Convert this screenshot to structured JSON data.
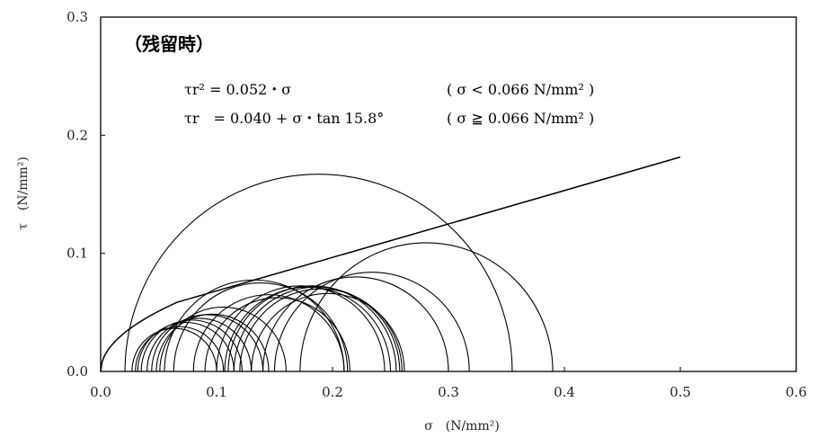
{
  "chart_data": {
    "type": "scatter",
    "title": "",
    "xlabel": "σ　(N/mm²)",
    "ylabel": "τ　(N/mm²)",
    "xlim": [
      0.0,
      0.6
    ],
    "ylim": [
      0.0,
      0.3
    ],
    "x_ticks": [
      "0.0",
      "0.1",
      "0.2",
      "0.3",
      "0.4",
      "0.5",
      "0.6"
    ],
    "y_ticks": [
      "0.0",
      "0.1",
      "0.2",
      "0.3"
    ],
    "grid": false,
    "legend": "none",
    "annotation": {
      "heading": "（残留時）",
      "eq1_left": "τr² = 0.052・σ",
      "eq1_right": "( σ < 0.066 N/mm² )",
      "eq2_left": "τr　= 0.040 + σ・tan 15.8°",
      "eq2_right": "( σ ≧ 0.066 N/mm² )"
    },
    "mohr_circles": [
      {
        "s3": 0.027,
        "s1": 0.1
      },
      {
        "s3": 0.03,
        "s1": 0.106
      },
      {
        "s3": 0.032,
        "s1": 0.115
      },
      {
        "s3": 0.035,
        "s1": 0.122
      },
      {
        "s3": 0.04,
        "s1": 0.13
      },
      {
        "s3": 0.044,
        "s1": 0.14
      },
      {
        "s3": 0.048,
        "s1": 0.145
      },
      {
        "s3": 0.051,
        "s1": 0.16
      },
      {
        "s3": 0.055,
        "s1": 0.21
      },
      {
        "s3": 0.063,
        "s1": 0.213
      },
      {
        "s3": 0.08,
        "s1": 0.21
      },
      {
        "s3": 0.09,
        "s1": 0.215
      },
      {
        "s3": 0.1,
        "s1": 0.245
      },
      {
        "s3": 0.107,
        "s1": 0.25
      },
      {
        "s3": 0.11,
        "s1": 0.255
      },
      {
        "s3": 0.115,
        "s1": 0.258
      },
      {
        "s3": 0.12,
        "s1": 0.26
      },
      {
        "s3": 0.13,
        "s1": 0.262
      },
      {
        "s3": 0.14,
        "s1": 0.3
      },
      {
        "s3": 0.15,
        "s1": 0.318
      },
      {
        "s3": 0.021,
        "s1": 0.355
      },
      {
        "s3": 0.172,
        "s1": 0.39
      }
    ],
    "failure_envelope": {
      "sigma_break": 0.066,
      "parabola_coef": 0.052,
      "c": 0.04,
      "phi_deg": 15.8,
      "sigma_max": 0.5
    }
  }
}
